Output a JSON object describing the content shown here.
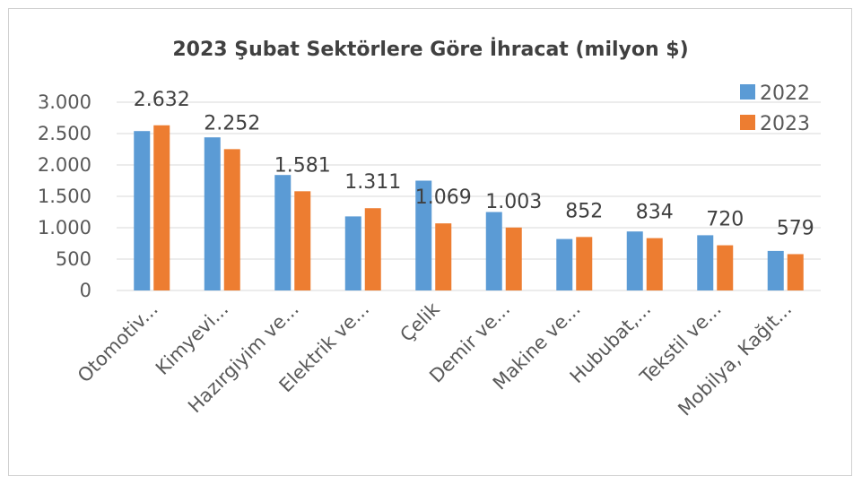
{
  "chart_data": {
    "type": "bar",
    "title": "2023 Şubat Sektörlere Göre İhracat (milyon $)",
    "categories": [
      "Otomotiv...",
      "Kimyevi...",
      "Hazırgiyim ve...",
      "Elektrik ve...",
      "Çelik",
      "Demir ve...",
      "Makine ve...",
      "Hububat,...",
      "Tekstil ve...",
      "Mobilya, Kağıt..."
    ],
    "series": [
      {
        "name": "2022",
        "color": "#5b9bd5",
        "values": [
          2540,
          2440,
          1840,
          1180,
          1750,
          1250,
          820,
          940,
          880,
          630
        ]
      },
      {
        "name": "2023",
        "color": "#ed7d31",
        "values": [
          2632,
          2252,
          1581,
          1311,
          1069,
          1003,
          852,
          834,
          720,
          579
        ],
        "data_labels": [
          "2.632",
          "2.252",
          "1.581",
          "1.311",
          "1.069",
          "1.003",
          "852",
          "834",
          "720",
          "579"
        ]
      }
    ],
    "ylim": [
      0,
      3000
    ],
    "yticks": [
      0,
      500,
      1000,
      1500,
      2000,
      2500,
      3000
    ],
    "ytick_labels": [
      "0",
      "500",
      "1.000",
      "1.500",
      "2.000",
      "2.500",
      "3.000"
    ],
    "grid": true,
    "legend": "top-right",
    "xlabel": "",
    "ylabel": ""
  }
}
